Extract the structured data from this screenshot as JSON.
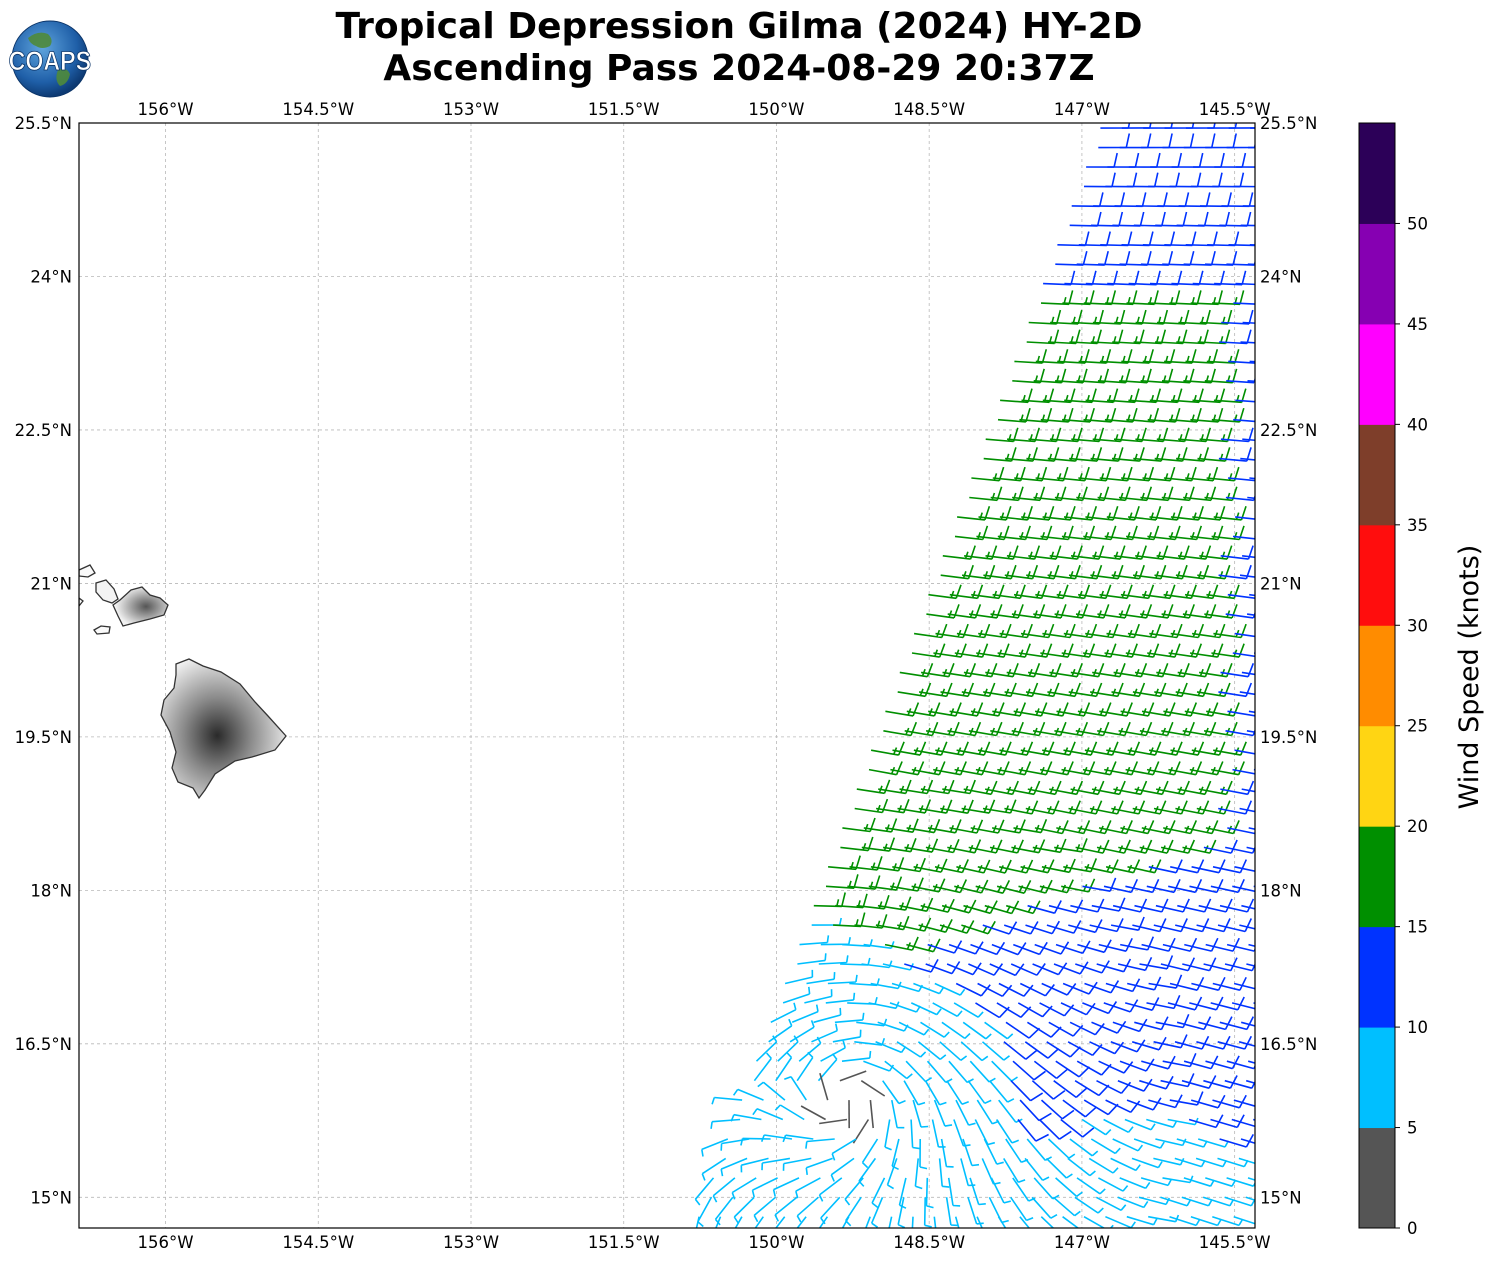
{
  "title": {
    "line1": "Tropical Depression Gilma (2024) HY-2D",
    "line2": "Ascending Pass 2024-08-29 20:37Z"
  },
  "logo": {
    "text": "COAPS"
  },
  "map": {
    "lon_range": [
      -156.85,
      -145.3
    ],
    "lat_range": [
      14.7,
      25.5
    ],
    "lon_ticks": [
      -156,
      -154.5,
      -153,
      -151.5,
      -150,
      -148.5,
      -147,
      -145.5
    ],
    "lon_tick_labels": [
      "156°W",
      "154.5°W",
      "153°W",
      "151.5°W",
      "150°W",
      "148.5°W",
      "147°W",
      "145.5°W"
    ],
    "lat_ticks": [
      25.5,
      24,
      22.5,
      21,
      19.5,
      18,
      16.5,
      15
    ],
    "lat_tick_labels": [
      "25.5°N",
      "24°N",
      "22.5°N",
      "21°N",
      "19.5°N",
      "18°N",
      "16.5°N",
      "15°N"
    ],
    "gridlines": true,
    "land_features": [
      "Hawaii",
      "Maui",
      "Molokai",
      "Kahoolawe",
      "Lanai"
    ],
    "swath": {
      "top_left_lon": -146.8,
      "bottom_left_lon": -150.8,
      "right_lon": -145.3
    },
    "barb_zones": {
      "note_units": "knots",
      "blue_north_speed": 12,
      "green_band_speed": 17,
      "blue_south_speed": 12,
      "cyan_south_speed": 8,
      "center_lon": -149.3,
      "center_lat": 15.95
    }
  },
  "colorbar": {
    "label": "Wind Speed (knots)",
    "ticks": [
      "0",
      "5",
      "10",
      "15",
      "20",
      "25",
      "30",
      "35",
      "40",
      "45",
      "50"
    ],
    "colors": [
      "#555555",
      "#00bfff",
      "#0033ff",
      "#008f00",
      "#ffd513",
      "#ff8c00",
      "#ff0d0d",
      "#7e3e2a",
      "#ff00ff",
      "#8600b2",
      "#2c0058"
    ]
  }
}
